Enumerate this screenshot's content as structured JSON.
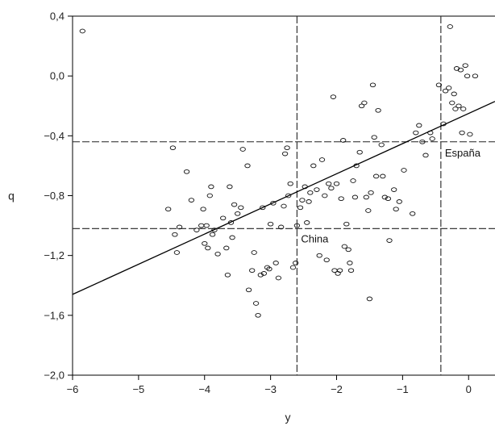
{
  "chart_data": {
    "type": "scatter",
    "title": "",
    "xlabel": "y",
    "ylabel": "q",
    "xlim": [
      -6,
      0.4
    ],
    "ylim": [
      -2.0,
      0.4
    ],
    "x_ticks": [
      -6,
      -5,
      -4,
      -3,
      -2,
      -1,
      0
    ],
    "x_tick_labels": [
      "−6",
      "−5",
      "−4",
      "−3",
      "−2",
      "−1",
      "0"
    ],
    "y_ticks": [
      0.4,
      0.0,
      -0.4,
      -0.8,
      -1.2,
      -1.6,
      -2.0
    ],
    "y_tick_labels": [
      "0,4",
      "0,0",
      "−0,4",
      "−0,8",
      "−1,2",
      "−1,6",
      "−2,0"
    ],
    "grid": false,
    "regression_line": {
      "x": [
        -6,
        0.4
      ],
      "y": [
        -1.46,
        -0.17
      ]
    },
    "reference_lines": {
      "china": {
        "label": "China",
        "x": -2.6,
        "y": -1.02
      },
      "espana": {
        "label": "España",
        "x": -0.42,
        "y": -0.44
      }
    },
    "points": [
      [
        -5.85,
        0.3
      ],
      [
        -4.55,
        -0.89
      ],
      [
        -4.48,
        -0.48
      ],
      [
        -4.45,
        -1.06
      ],
      [
        -4.42,
        -1.18
      ],
      [
        -4.38,
        -1.01
      ],
      [
        -4.27,
        -0.64
      ],
      [
        -4.2,
        -0.83
      ],
      [
        -4.12,
        -1.03
      ],
      [
        -4.05,
        -1.0
      ],
      [
        -4.02,
        -0.89
      ],
      [
        -4.0,
        -1.12
      ],
      [
        -3.97,
        -1.0
      ],
      [
        -3.95,
        -1.15
      ],
      [
        -3.92,
        -0.8
      ],
      [
        -3.9,
        -0.74
      ],
      [
        -3.88,
        -1.06
      ],
      [
        -3.85,
        -1.03
      ],
      [
        -3.8,
        -1.19
      ],
      [
        -3.72,
        -0.95
      ],
      [
        -3.67,
        -1.15
      ],
      [
        -3.65,
        -1.33
      ],
      [
        -3.62,
        -0.74
      ],
      [
        -3.6,
        -0.98
      ],
      [
        -3.58,
        -1.08
      ],
      [
        -3.55,
        -0.86
      ],
      [
        -3.5,
        -0.92
      ],
      [
        -3.45,
        -0.88
      ],
      [
        -3.42,
        -0.49
      ],
      [
        -3.35,
        -0.6
      ],
      [
        -3.33,
        -1.43
      ],
      [
        -3.28,
        -1.3
      ],
      [
        -3.25,
        -1.18
      ],
      [
        -3.22,
        -1.52
      ],
      [
        -3.19,
        -1.6
      ],
      [
        -3.15,
        -1.33
      ],
      [
        -3.12,
        -0.88
      ],
      [
        -3.1,
        -1.32
      ],
      [
        -3.05,
        -1.28
      ],
      [
        -3.02,
        -1.29
      ],
      [
        -3.0,
        -0.99
      ],
      [
        -2.96,
        -0.85
      ],
      [
        -2.92,
        -1.25
      ],
      [
        -2.88,
        -1.35
      ],
      [
        -2.84,
        -1.01
      ],
      [
        -2.8,
        -0.87
      ],
      [
        -2.78,
        -0.52
      ],
      [
        -2.75,
        -0.48
      ],
      [
        -2.73,
        -0.8
      ],
      [
        -2.7,
        -0.72
      ],
      [
        -2.66,
        -1.28
      ],
      [
        -2.62,
        -1.25
      ],
      [
        -2.6,
        -1.0
      ],
      [
        -2.55,
        -0.88
      ],
      [
        -2.52,
        -0.83
      ],
      [
        -2.48,
        -0.74
      ],
      [
        -2.45,
        -0.98
      ],
      [
        -2.42,
        -0.84
      ],
      [
        -2.4,
        -0.78
      ],
      [
        -2.35,
        -0.6
      ],
      [
        -2.3,
        -0.76
      ],
      [
        -2.26,
        -1.2
      ],
      [
        -2.22,
        -0.56
      ],
      [
        -2.18,
        -0.8
      ],
      [
        -2.15,
        -1.23
      ],
      [
        -2.12,
        -0.72
      ],
      [
        -2.08,
        -0.75
      ],
      [
        -2.05,
        -0.14
      ],
      [
        -2.03,
        -1.3
      ],
      [
        -2.0,
        -0.72
      ],
      [
        -1.98,
        -1.32
      ],
      [
        -1.95,
        -1.3
      ],
      [
        -1.93,
        -0.82
      ],
      [
        -1.9,
        -0.43
      ],
      [
        -1.88,
        -1.14
      ],
      [
        -1.85,
        -0.99
      ],
      [
        -1.82,
        -1.16
      ],
      [
        -1.8,
        -1.25
      ],
      [
        -1.78,
        -1.3
      ],
      [
        -1.75,
        -0.7
      ],
      [
        -1.72,
        -0.81
      ],
      [
        -1.7,
        -0.6
      ],
      [
        -1.65,
        -0.51
      ],
      [
        -1.62,
        -0.2
      ],
      [
        -1.58,
        -0.18
      ],
      [
        -1.55,
        -0.81
      ],
      [
        -1.52,
        -0.9
      ],
      [
        -1.5,
        -1.49
      ],
      [
        -1.48,
        -0.78
      ],
      [
        -1.45,
        -0.06
      ],
      [
        -1.43,
        -0.41
      ],
      [
        -1.4,
        -0.67
      ],
      [
        -1.37,
        -0.23
      ],
      [
        -1.32,
        -0.46
      ],
      [
        -1.3,
        -0.67
      ],
      [
        -1.27,
        -0.81
      ],
      [
        -1.22,
        -0.82
      ],
      [
        -1.2,
        -1.1
      ],
      [
        -1.13,
        -0.76
      ],
      [
        -1.1,
        -0.89
      ],
      [
        -1.05,
        -0.84
      ],
      [
        -0.98,
        -0.63
      ],
      [
        -0.85,
        -0.92
      ],
      [
        -0.8,
        -0.38
      ],
      [
        -0.75,
        -0.33
      ],
      [
        -0.7,
        -0.44
      ],
      [
        -0.65,
        -0.53
      ],
      [
        -0.58,
        -0.38
      ],
      [
        -0.55,
        -0.42
      ],
      [
        -0.45,
        -0.06
      ],
      [
        -0.38,
        -0.32
      ],
      [
        -0.35,
        -0.1
      ],
      [
        -0.3,
        -0.08
      ],
      [
        -0.28,
        0.33
      ],
      [
        -0.25,
        -0.18
      ],
      [
        -0.22,
        -0.12
      ],
      [
        -0.2,
        -0.22
      ],
      [
        -0.18,
        0.05
      ],
      [
        -0.15,
        -0.2
      ],
      [
        -0.12,
        0.04
      ],
      [
        -0.1,
        -0.38
      ],
      [
        -0.08,
        -0.22
      ],
      [
        -0.05,
        0.07
      ],
      [
        -0.02,
        0.0
      ],
      [
        0.02,
        -0.39
      ],
      [
        0.1,
        0.0
      ],
      [
        0.45,
        -0.16
      ]
    ]
  }
}
